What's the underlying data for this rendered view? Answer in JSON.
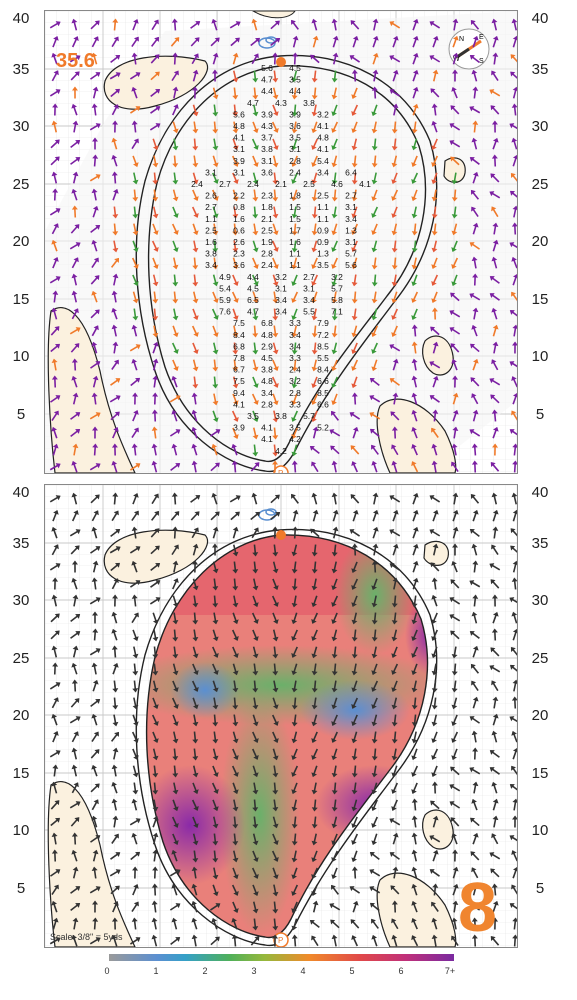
{
  "hole": {
    "number": "8",
    "distance_label": "35.6"
  },
  "axis": {
    "y_ticks": [
      "40",
      "35",
      "30",
      "25",
      "20",
      "15",
      "10",
      "5"
    ]
  },
  "scale_note": "Scale: 3/8\" = 5yds",
  "legend": {
    "ticks": [
      "0",
      "1",
      "2",
      "3",
      "4",
      "5",
      "6",
      "7+"
    ]
  },
  "colors": {
    "accent": "#f07a2a",
    "arrow_purple": "#7b1fa2",
    "arrow_green": "#3a9a3a",
    "arrow_orange": "#f07a2a",
    "sand": "#fbf1df"
  },
  "slope_values": [
    [
      "5.6",
      "4.5"
    ],
    [
      "4.7",
      "3.5"
    ],
    [
      "4.4",
      "4.4"
    ],
    [
      "4.7",
      "4.3",
      "3.8"
    ],
    [
      "5.6",
      "3.9",
      "3.9",
      "3.2"
    ],
    [
      "4.8",
      "4.3",
      "3.6",
      "4.1"
    ],
    [
      "4.1",
      "3.7",
      "3.5",
      "4.8"
    ],
    [
      "3.1",
      "3.8",
      "3.1",
      "4.1"
    ],
    [
      "3.9",
      "3.1",
      "2.8",
      "5.4"
    ],
    [
      "3.1",
      "3.1",
      "3.6",
      "2.4",
      "3.4",
      "6.4"
    ],
    [
      "2.4",
      "2.7",
      "2.4",
      "2.1",
      "2.5",
      "4.6",
      "4.1"
    ],
    [
      "2.6",
      "2.2",
      "2.3",
      "1.8",
      "2.5",
      "2.7"
    ],
    [
      "2.7",
      "0.8",
      "1.8",
      "1.5",
      "1.1",
      "3.1"
    ],
    [
      "1.1",
      "1.6",
      "2.1",
      "1.5",
      "1.1",
      "3.4"
    ],
    [
      "2.5",
      "0.6",
      "2.5",
      "1.7",
      "0.9",
      "1.3"
    ],
    [
      "1.6",
      "2.6",
      "1.9",
      "1.6",
      "0.9",
      "3.1"
    ],
    [
      "3.8",
      "2.3",
      "2.8",
      "1.1",
      "1.3",
      "5.7"
    ],
    [
      "3.4",
      "3.6",
      "2.4",
      "1.1",
      "3.5",
      "5.6"
    ],
    [
      "4.9",
      "4.4",
      "3.2",
      "2.7",
      "3.2"
    ],
    [
      "5.4",
      "4.5",
      "3.1",
      "3.1",
      "5.7"
    ],
    [
      "5.9",
      "6.5",
      "3.4",
      "3.4",
      "5.8"
    ],
    [
      "7.6",
      "4.7",
      "3.4",
      "5.5",
      "7.1"
    ],
    [
      "7.5",
      "6.8",
      "3.3",
      "7.9"
    ],
    [
      "8.4",
      "4.8",
      "3.4",
      "7.2"
    ],
    [
      "6.8",
      "2.9",
      "3.4",
      "8.5"
    ],
    [
      "7.8",
      "4.5",
      "3.3",
      "5.5"
    ],
    [
      "6.7",
      "3.8",
      "2.4",
      "8.4"
    ],
    [
      "7.5",
      "4.8",
      "3.2",
      "6.6"
    ],
    [
      "9.4",
      "3.4",
      "2.8",
      "8.5"
    ],
    [
      "4.1",
      "2.8",
      "3.3",
      "6.6"
    ],
    [
      "3.5",
      "3.8",
      "5.7"
    ],
    [
      "3.9",
      "4.1",
      "3.5",
      "5.2"
    ],
    [
      "4.1",
      "4.2"
    ],
    [
      "4.2"
    ]
  ]
}
